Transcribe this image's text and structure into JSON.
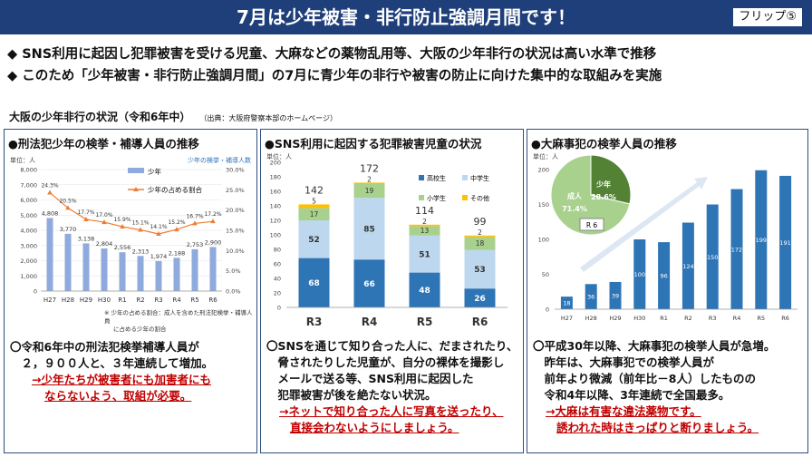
{
  "header": {
    "title": "7月は少年被害・非行防止強調月間です！",
    "flip": "フリップ⑤"
  },
  "bullets": [
    "◆ SNS利用に起因し犯罪被害を受ける児童、大麻などの薬物乱用等、大阪の少年非行の状況は高い水準で推移",
    "◆ このため「少年被害・非行防止強調月間」の7月に青少年の非行や被害の防止に向けた集中的な取組みを実施"
  ],
  "section": {
    "title": "大阪の少年非行の状況（令和6年中）",
    "source": "（出典：大阪府警察本部のホームページ）"
  },
  "colors": {
    "navy": "#1f3f7a",
    "bar": "#8faadc",
    "line": "#ed7d31",
    "blue": "#2e75b6",
    "green": "#548235",
    "red": "#c00000"
  },
  "panels": {
    "p1": {
      "title": "●刑法犯少年の検挙・補導人員の推移",
      "unit_left": "単位：人",
      "unit_right": "少年の検挙・補導人数",
      "note1": "※ 少年の占める割合：成人を含めた刑法犯検挙・補導人員",
      "note2": "に占める少年の割合",
      "desc1": "〇令和6年中の刑法犯検挙補導人員が",
      "desc2": "　２，９００人と、３年連続して増加。",
      "desc3": "→少年たちが被害者にも加害者にも",
      "desc4": "ならないよう、取組が必要。"
    },
    "p2": {
      "title": "●SNS利用に起因する犯罪被害児童の状況",
      "unit": "単位：人",
      "desc1": "〇SNSを通じて知り合った人に、だまされたり、",
      "desc2": "　脅されたりした児童が、自分の裸体を撮影し",
      "desc3": "　メールで送る等、SNS利用に起因した",
      "desc4": "　犯罪被害が後を絶たない状況。",
      "desc5": "→ネットで知り合った人に写真を送ったり、",
      "desc6": "直接会わないようにしましょう。"
    },
    "p3": {
      "title": "●大麻事犯の検挙人員の推移",
      "unit": "単位：人",
      "pie_minor_label": "少年",
      "pie_minor_value": "28.6%",
      "pie_major_label": "成人",
      "pie_major_value": "71.4%",
      "pie_tag": "R 6",
      "desc1": "〇平成30年以降、大麻事犯の検挙人員が急増。",
      "desc2": "　昨年は、大麻事犯での検挙人員が",
      "desc3": "　前年より微減（前年比－8人）したものの",
      "desc4": "　令和4年以降、3年連続で全国最多。",
      "desc5": "→大麻は有害な違法薬物です。",
      "desc6": "誘われた時はきっぱりと断りましょう。"
    }
  },
  "chart_data": [
    {
      "type": "bar",
      "title": "刑法犯少年の検挙・補導人員の推移",
      "categories": [
        "H27",
        "H28",
        "H29",
        "H30",
        "R1",
        "R2",
        "R3",
        "R4",
        "R5",
        "R6"
      ],
      "series": [
        {
          "name": "少年",
          "type": "bar",
          "values": [
            4808,
            3770,
            3138,
            2804,
            2556,
            2313,
            1974,
            2188,
            2753,
            2900
          ],
          "labels": [
            "4,808",
            "3,770",
            "3,138",
            "2,804",
            "2,556",
            "2,313",
            "1,974",
            "2,188",
            "2,753",
            "2,900"
          ]
        },
        {
          "name": "少年の占める割合",
          "type": "line",
          "axis": "right",
          "values": [
            24.3,
            20.5,
            17.7,
            17.0,
            15.9,
            15.1,
            14.1,
            15.2,
            16.7,
            17.2
          ],
          "labels": [
            "24.3%",
            "20.5%",
            "17.7%",
            "17.0%",
            "15.9%",
            "15.1%",
            "14.1%",
            "15.2%",
            "16.7%",
            "17.2%"
          ]
        }
      ],
      "ylim": [
        0,
        8000
      ],
      "yticks": [
        "0",
        "1,000",
        "2,000",
        "3,000",
        "4,000",
        "5,000",
        "6,000",
        "7,000",
        "8,000"
      ],
      "y2lim": [
        0,
        30
      ],
      "y2ticks": [
        "0.0%",
        "5.0%",
        "10.0%",
        "15.0%",
        "20.0%",
        "25.0%",
        "30.0%"
      ]
    },
    {
      "type": "stacked-bar",
      "title": "SNS利用に起因する犯罪被害児童の状況",
      "categories": [
        "R3",
        "R4",
        "R5",
        "R6"
      ],
      "totals": [
        142,
        172,
        114,
        99
      ],
      "series": [
        {
          "name": "高校生",
          "color": "#2e75b6",
          "values": [
            68,
            66,
            48,
            26
          ]
        },
        {
          "name": "中学生",
          "color": "#bdd7ee",
          "values": [
            52,
            85,
            51,
            53
          ]
        },
        {
          "name": "小学生",
          "color": "#a9d18e",
          "values": [
            17,
            19,
            13,
            18
          ]
        },
        {
          "name": "その他",
          "color": "#ffc000",
          "values": [
            5,
            2,
            2,
            2
          ]
        }
      ],
      "ylim": [
        0,
        200
      ],
      "yticks": [
        "0",
        "20",
        "40",
        "60",
        "80",
        "100",
        "120",
        "140",
        "160",
        "180",
        "200"
      ]
    },
    {
      "type": "bar",
      "title": "大麻事犯の検挙人員の推移",
      "categories": [
        "H27",
        "H28",
        "H29",
        "H30",
        "R1",
        "R2",
        "R3",
        "R4",
        "R5",
        "R6"
      ],
      "values": [
        18,
        36,
        39,
        100,
        96,
        124,
        150,
        172,
        199,
        191
      ],
      "ylim": [
        0,
        200
      ],
      "yticks": [
        "0",
        "50",
        "100",
        "150",
        "200"
      ]
    },
    {
      "type": "pie",
      "title": "R 6",
      "slices": [
        {
          "label": "少年",
          "value": 28.6
        },
        {
          "label": "成人",
          "value": 71.4
        }
      ]
    }
  ]
}
